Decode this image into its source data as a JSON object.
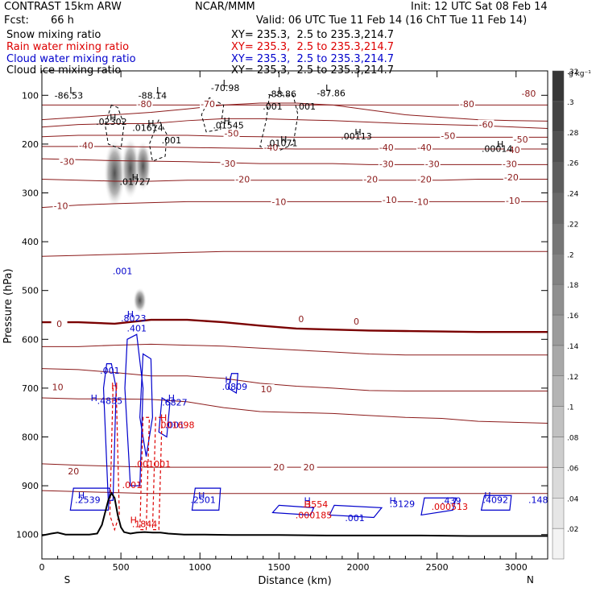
{
  "header": {
    "model": "CONTRAST 15km ARW",
    "org": "NCAR/MMM",
    "init": "Init: 12 UTC Sat 08 Feb 14",
    "fcst_label": "Fcst:",
    "fcst_value": "66 h",
    "valid": "Valid: 06 UTC Tue 11 Feb 14 (16 ChT Tue 11 Feb 14)"
  },
  "fields": [
    {
      "name": "Snow mixing ratio",
      "xy": "XY= 235.3,  2.5 to 235.3,214.7",
      "color": "#000000"
    },
    {
      "name": "Rain water mixing ratio",
      "xy": "XY= 235.3,  2.5 to 235.3,214.7",
      "color": "#dd0000"
    },
    {
      "name": "Cloud water mixing ratio",
      "xy": "XY= 235.3,  2.5 to 235.3,214.7",
      "color": "#0000cc"
    },
    {
      "name": "Cloud ice mixing ratio",
      "xy": "XY= 235.3,  2.5 to 235.3,214.7",
      "color": "#000000"
    }
  ],
  "chart_data": {
    "type": "cross-section",
    "xlabel": "Distance (km)",
    "ylabel": "Pressure (hPa)",
    "xlim": [
      0,
      3200
    ],
    "ylim": [
      1050,
      50
    ],
    "x_ticks": [
      0,
      500,
      1000,
      1500,
      2000,
      2500,
      3000
    ],
    "y_ticks": [
      100,
      200,
      300,
      400,
      500,
      600,
      700,
      800,
      900,
      1000
    ],
    "x_end_labels": {
      "left": "S",
      "right": "N"
    },
    "colorbar": {
      "units": "g kg⁻¹",
      "levels": [
        0.02,
        0.04,
        0.06,
        0.08,
        0.1,
        0.12,
        0.14,
        0.16,
        0.18,
        0.2,
        0.22,
        0.24,
        0.26,
        0.28,
        0.3,
        0.32
      ],
      "labels": [
        ".02",
        ".04",
        ".06",
        ".08",
        ".1",
        ".12",
        ".14",
        ".16",
        ".18",
        ".2",
        ".22",
        ".24",
        ".26",
        ".28",
        ".3",
        ".32"
      ]
    },
    "isotherms": [
      {
        "t": -80,
        "p": [
          120,
          120,
          120,
          120,
          120,
          120,
          120,
          120,
          120,
          120,
          120,
          120,
          120,
          120,
          120
        ]
      },
      {
        "t": -70,
        "p": [
          150,
          145,
          140,
          135,
          128,
          120,
          116,
          116,
          120,
          130,
          140,
          145,
          150,
          152,
          153
        ]
      },
      {
        "t": -60,
        "p": [
          165,
          160,
          158,
          158,
          152,
          148,
          148,
          150,
          152,
          155,
          158,
          160,
          162,
          165,
          168
        ]
      },
      {
        "t": -50,
        "p": [
          185,
          182,
          182,
          182,
          182,
          184,
          185,
          186,
          186,
          186,
          186,
          186,
          186,
          186,
          186
        ]
      },
      {
        "t": -40,
        "p": [
          205,
          205,
          205,
          206,
          207,
          208,
          209,
          210,
          210,
          210,
          210,
          210,
          210,
          210,
          210
        ]
      },
      {
        "t": -30,
        "p": [
          230,
          232,
          234,
          235,
          236,
          238,
          240,
          240,
          240,
          242,
          242,
          242,
          242,
          242,
          242
        ]
      },
      {
        "t": -20,
        "p": [
          272,
          274,
          276,
          276,
          274,
          274,
          274,
          274,
          274,
          274,
          274,
          274,
          272,
          272,
          272
        ]
      },
      {
        "t": -10,
        "p": [
          330,
          325,
          322,
          320,
          318,
          318,
          318,
          318,
          318,
          318,
          318,
          318,
          318,
          318,
          318
        ]
      },
      {
        "t": -5,
        "p": [
          430,
          428,
          426,
          424,
          422,
          420,
          420,
          420,
          420,
          420,
          420,
          420,
          420,
          420,
          420
        ]
      },
      {
        "t": 0,
        "p": [
          565,
          565,
          568,
          560,
          560,
          565,
          572,
          578,
          580,
          582,
          583,
          584,
          585,
          585,
          585
        ]
      },
      {
        "t": 5,
        "p": [
          615,
          615,
          612,
          610,
          612,
          614,
          618,
          622,
          626,
          630,
          632,
          632,
          632,
          632,
          632
        ]
      },
      {
        "t": 10,
        "p": [
          660,
          662,
          668,
          675,
          675,
          680,
          690,
          696,
          700,
          705,
          706,
          706,
          706,
          706,
          706
        ]
      },
      {
        "t": 15,
        "p": [
          720,
          722,
          722,
          723,
          728,
          740,
          748,
          750,
          752,
          756,
          760,
          762,
          768,
          770,
          772
        ]
      },
      {
        "t": 20,
        "p": [
          855,
          858,
          860,
          862,
          862,
          862,
          862,
          862,
          862,
          862,
          862,
          862,
          862,
          862,
          862
        ]
      },
      {
        "t": 25,
        "p": [
          910,
          912,
          914,
          916,
          916,
          916,
          916,
          916,
          916,
          916,
          916,
          916,
          916,
          916,
          916
        ]
      }
    ],
    "isotherm_x": [
      0,
      230,
      460,
      690,
      920,
      1150,
      1380,
      1610,
      1840,
      2070,
      2300,
      2530,
      2760,
      2990,
      3200
    ],
    "isotherm_labels": [
      {
        "text": "-80",
        "x": 650,
        "p": 118
      },
      {
        "text": "-80",
        "x": 2690,
        "p": 118
      },
      {
        "text": "-80",
        "x": 3080,
        "p": 96
      },
      {
        "text": "-70",
        "x": 1050,
        "p": 118
      },
      {
        "text": "-60",
        "x": 2810,
        "p": 160
      },
      {
        "text": "-50",
        "x": 1200,
        "p": 178
      },
      {
        "text": "-50",
        "x": 2570,
        "p": 183
      },
      {
        "text": "-50",
        "x": 3030,
        "p": 190
      },
      {
        "text": "-40",
        "x": 280,
        "p": 203
      },
      {
        "text": "-40",
        "x": 1450,
        "p": 207
      },
      {
        "text": "-40",
        "x": 2180,
        "p": 207
      },
      {
        "text": "-40",
        "x": 2420,
        "p": 207
      },
      {
        "text": "-40",
        "x": 2980,
        "p": 212
      },
      {
        "text": "-30",
        "x": 160,
        "p": 236
      },
      {
        "text": "-30",
        "x": 1180,
        "p": 240
      },
      {
        "text": "-30",
        "x": 2180,
        "p": 241
      },
      {
        "text": "-30",
        "x": 2470,
        "p": 241
      },
      {
        "text": "-30",
        "x": 2960,
        "p": 241
      },
      {
        "text": "-20",
        "x": 1270,
        "p": 272
      },
      {
        "text": "-20",
        "x": 2080,
        "p": 272
      },
      {
        "text": "-20",
        "x": 2420,
        "p": 272
      },
      {
        "text": "-20",
        "x": 2970,
        "p": 268
      },
      {
        "text": "-10",
        "x": 120,
        "p": 326
      },
      {
        "text": "-10",
        "x": 1500,
        "p": 318
      },
      {
        "text": "-10",
        "x": 2200,
        "p": 314
      },
      {
        "text": "-10",
        "x": 2400,
        "p": 318
      },
      {
        "text": "-10",
        "x": 2980,
        "p": 316
      },
      {
        "text": "0",
        "x": 110,
        "p": 568
      },
      {
        "text": "0",
        "x": 1640,
        "p": 558
      },
      {
        "text": "0",
        "x": 1990,
        "p": 563
      },
      {
        "text": "10",
        "x": 100,
        "p": 698
      },
      {
        "text": "10",
        "x": 1420,
        "p": 702
      },
      {
        "text": "20",
        "x": 200,
        "p": 870
      },
      {
        "text": "20",
        "x": 1500,
        "p": 862
      },
      {
        "text": "20",
        "x": 1690,
        "p": 862
      }
    ],
    "labels_black": [
      {
        "text": "L",
        "x": 190,
        "p": 90
      },
      {
        "text": "-86.53",
        "x": 170,
        "p": 100
      },
      {
        "text": "L",
        "x": 740,
        "p": 90
      },
      {
        "text": "-88.14",
        "x": 700,
        "p": 100
      },
      {
        "text": "L",
        "x": 1160,
        "p": 75
      },
      {
        "text": "-70.98",
        "x": 1160,
        "p": 85
      },
      {
        "text": "L",
        "x": 1510,
        "p": 90
      },
      {
        "text": "-88.86",
        "x": 1520,
        "p": 97
      },
      {
        "text": "L",
        "x": 1810,
        "p": 85
      },
      {
        "text": "-87.86",
        "x": 1830,
        "p": 95
      },
      {
        "text": "H",
        "x": 450,
        "p": 145
      },
      {
        "text": ".02302",
        "x": 440,
        "p": 154
      },
      {
        "text": "H",
        "x": 690,
        "p": 157
      },
      {
        "text": ".01614",
        "x": 670,
        "p": 166
      },
      {
        "text": "H",
        "x": 1170,
        "p": 152
      },
      {
        "text": ".01545",
        "x": 1180,
        "p": 161
      },
      {
        "text": "H",
        "x": 2000,
        "p": 175
      },
      {
        "text": ".00113",
        "x": 1990,
        "p": 184
      },
      {
        "text": "H",
        "x": 1530,
        "p": 190
      },
      {
        "text": ".01071",
        "x": 1520,
        "p": 198
      },
      {
        "text": "H",
        "x": 2900,
        "p": 200
      },
      {
        "text": ".00014",
        "x": 2880,
        "p": 209
      },
      {
        "text": "H",
        "x": 590,
        "p": 268
      },
      {
        "text": ".01727",
        "x": 590,
        "p": 277
      },
      {
        "text": ".001",
        "x": 820,
        "p": 192
      },
      {
        "text": ".001",
        "x": 1460,
        "p": 123
      },
      {
        "text": ".001",
        "x": 1670,
        "p": 123
      }
    ],
    "labels_blue": [
      {
        "text": ".001",
        "x": 510,
        "p": 460
      },
      {
        "text": "H",
        "x": 560,
        "p": 548
      },
      {
        "text": ".8023",
        "x": 580,
        "p": 557
      },
      {
        "text": ".401",
        "x": 600,
        "p": 577
      },
      {
        "text": ".001",
        "x": 430,
        "p": 664
      },
      {
        "text": "H",
        "x": 330,
        "p": 720
      },
      {
        "text": ".4835",
        "x": 430,
        "p": 726
      },
      {
        "text": "H",
        "x": 1180,
        "p": 683
      },
      {
        "text": ".0809",
        "x": 1220,
        "p": 697
      },
      {
        "text": "H",
        "x": 820,
        "p": 720
      },
      {
        "text": ".6827",
        "x": 840,
        "p": 729
      },
      {
        "text": ".001",
        "x": 840,
        "p": 775
      },
      {
        "text": "H",
        "x": 250,
        "p": 920
      },
      {
        "text": ".2539",
        "x": 290,
        "p": 929
      },
      {
        "text": "H",
        "x": 1010,
        "p": 920
      },
      {
        "text": ".2501",
        "x": 1020,
        "p": 929
      },
      {
        "text": "H",
        "x": 1680,
        "p": 930
      },
      {
        "text": "H",
        "x": 2220,
        "p": 930
      },
      {
        "text": ".3129",
        "x": 2280,
        "p": 937
      },
      {
        "text": ".439",
        "x": 2590,
        "p": 930
      },
      {
        "text": "H",
        "x": 2820,
        "p": 920
      },
      {
        "text": ".4092",
        "x": 2870,
        "p": 929
      },
      {
        "text": ".148",
        "x": 3140,
        "p": 929
      },
      {
        "text": ".001",
        "x": 1980,
        "p": 966
      }
    ],
    "labels_red": [
      {
        "text": "H",
        "x": 460,
        "p": 695
      },
      {
        "text": "H",
        "x": 770,
        "p": 760
      },
      {
        "text": ".001698",
        "x": 850,
        "p": 775
      },
      {
        "text": ".001001",
        "x": 700,
        "p": 855
      },
      {
        "text": ".001",
        "x": 570,
        "p": 898
      },
      {
        "text": "H",
        "x": 580,
        "p": 970
      },
      {
        "text": ".1844",
        "x": 650,
        "p": 978
      },
      {
        "text": "H",
        "x": 1680,
        "p": 938
      },
      {
        "text": ".3554",
        "x": 1730,
        "p": 938
      },
      {
        "text": ".000185",
        "x": 1720,
        "p": 960
      },
      {
        "text": ".000513",
        "x": 2580,
        "p": 943
      }
    ],
    "terrain": {
      "x": [
        0,
        60,
        100,
        150,
        200,
        250,
        300,
        350,
        380,
        400,
        420,
        440,
        460,
        480,
        500,
        520,
        560,
        600,
        650,
        700,
        750,
        800,
        900,
        1000,
        1200,
        1500,
        1800,
        2100,
        2400,
        2700,
        3000,
        3200
      ],
      "p": [
        1002,
        998,
        996,
        1000,
        1000,
        1000,
        1000,
        998,
        980,
        955,
        930,
        915,
        925,
        960,
        985,
        995,
        998,
        996,
        995,
        996,
        996,
        998,
        1000,
        1000,
        1001,
        1001,
        1002,
        1002,
        1002,
        1003,
        1003,
        1003
      ]
    }
  }
}
